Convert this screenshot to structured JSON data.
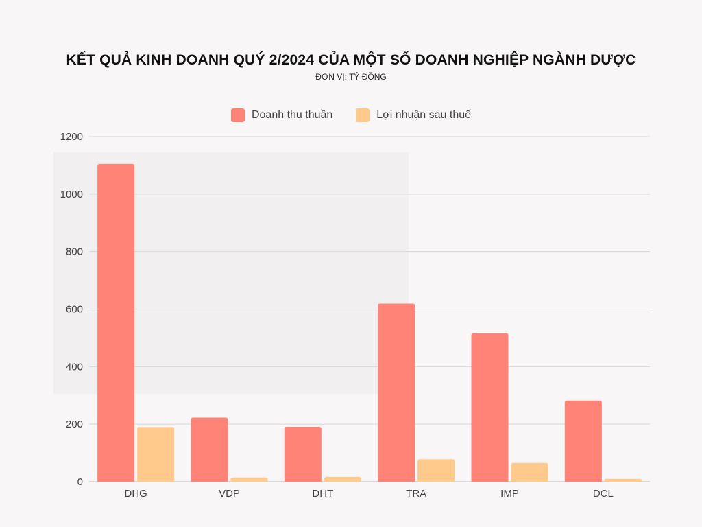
{
  "colors": {
    "background": "#f8f6f6",
    "revenue": "#ff8477",
    "profit": "#ffca8c",
    "grid": "#d6d6d6"
  },
  "chart_data": {
    "type": "bar",
    "title": "KẾT QUẢ KINH DOANH QUÝ 2/2024 CỦA MỘT SỐ DOANH NGHIỆP NGÀNH DƯỢC",
    "subtitle": "ĐƠN VỊ: TỶ ĐỒNG",
    "categories": [
      "DHG",
      "VDP",
      "DHT",
      "TRA",
      "IMP",
      "DCL"
    ],
    "series": [
      {
        "name": "Doanh thu thuần",
        "color": "#ff8477",
        "values": [
          1105,
          223,
          191,
          619,
          516,
          282
        ]
      },
      {
        "name": "Lợi nhuận sau thuế",
        "color": "#ffca8c",
        "values": [
          190,
          15,
          17,
          78,
          65,
          10
        ]
      }
    ],
    "ylim": [
      0,
      1200
    ],
    "yticks": [
      0,
      200,
      400,
      600,
      800,
      1000,
      1200
    ],
    "grid": true,
    "legend_position": "top-center"
  }
}
